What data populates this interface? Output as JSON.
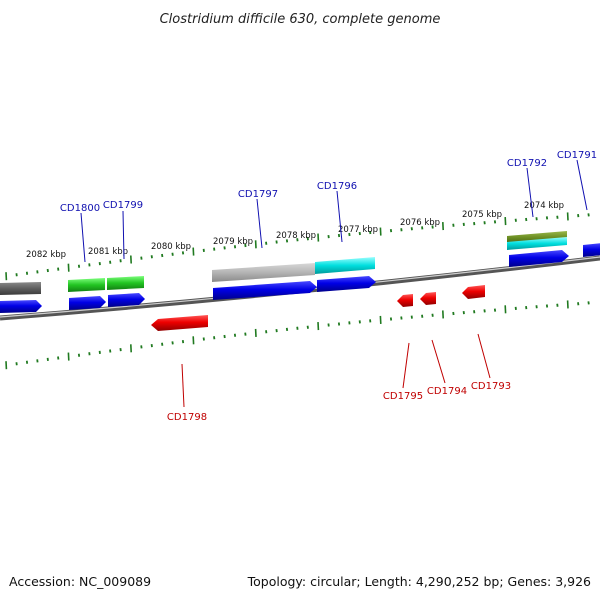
{
  "title": "Clostridium difficile 630, complete genome",
  "footer": {
    "accession": "Accession: NC_009089",
    "topology": "Topology: circular; Length: 4,290,252 bp; Genes: 3,926"
  },
  "colors": {
    "backbone": "#7a7a7a",
    "forward_gene": "#0a0ae0",
    "reverse_gene": "#ee0000",
    "ticks": "#207a20",
    "forward_label": "#1010b0",
    "reverse_label": "#c00000",
    "feature_green": "#33cc33",
    "feature_gray": "#b8b8b8",
    "feature_darkgray": "#666666",
    "feature_cyan": "#00e0e0",
    "feature_olive": "#6b8e23"
  },
  "kbp_labels": [
    "2082 kbp",
    "2081 kbp",
    "2080 kbp",
    "2079 kbp",
    "2078 kbp",
    "2077 kbp",
    "2076 kbp",
    "2075 kbp",
    "2074 kbp"
  ],
  "forward_gene_labels": [
    "CD1800",
    "CD1799",
    "CD1797",
    "CD1796",
    "CD1792",
    "CD1791"
  ],
  "reverse_gene_labels": [
    "CD1798",
    "CD1795",
    "CD1794",
    "CD1793"
  ]
}
